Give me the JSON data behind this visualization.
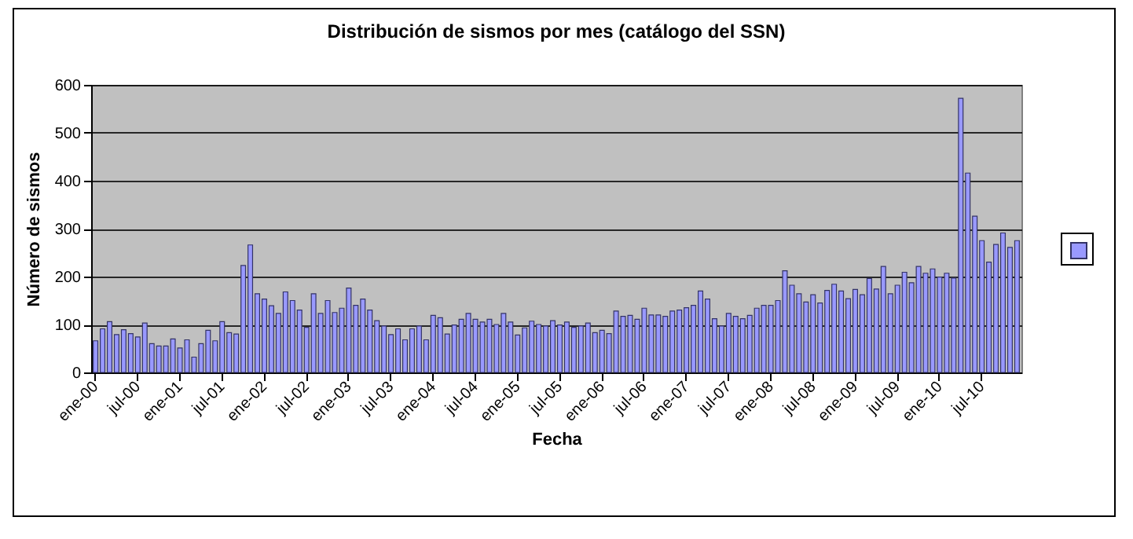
{
  "chart_data": {
    "type": "bar",
    "title": "Distribución de sismos por mes (catálogo del SSN)",
    "xlabel": "Fecha",
    "ylabel": "Número de sismos",
    "categories": [
      "ene-00",
      null,
      null,
      null,
      null,
      null,
      "jul-00",
      null,
      null,
      null,
      null,
      null,
      "ene-01",
      null,
      null,
      null,
      null,
      null,
      "jul-01",
      null,
      null,
      null,
      null,
      null,
      "ene-02",
      null,
      null,
      null,
      null,
      null,
      "jul-02",
      null,
      null,
      null,
      null,
      null,
      "ene-03",
      null,
      null,
      null,
      null,
      null,
      "jul-03",
      null,
      null,
      null,
      null,
      null,
      "ene-04",
      null,
      null,
      null,
      null,
      null,
      "jul-04",
      null,
      null,
      null,
      null,
      null,
      "ene-05",
      null,
      null,
      null,
      null,
      null,
      "jul-05",
      null,
      null,
      null,
      null,
      null,
      "ene-06",
      null,
      null,
      null,
      null,
      null,
      "jul-06",
      null,
      null,
      null,
      null,
      null,
      "ene-07",
      null,
      null,
      null,
      null,
      null,
      "jul-07",
      null,
      null,
      null,
      null,
      null,
      "ene-08",
      null,
      null,
      null,
      null,
      null,
      "jul-08",
      null,
      null,
      null,
      null,
      null,
      "ene-09",
      null,
      null,
      null,
      null,
      null,
      "jul-09",
      null,
      null,
      null,
      null,
      null,
      "ene-10",
      null,
      null,
      null,
      null,
      null,
      "jul-10",
      null,
      null,
      null,
      null,
      null
    ],
    "series": [
      {
        "color": "#9999ff",
        "values": [
          66,
          91,
          106,
          79,
          89,
          81,
          74,
          103,
          60,
          55,
          55,
          70,
          51,
          68,
          32,
          60,
          88,
          66,
          106,
          83,
          80,
          223,
          266,
          164,
          153,
          139,
          123,
          168,
          150,
          130,
          94,
          164,
          123,
          150,
          125,
          134,
          176,
          140,
          153,
          130,
          108,
          97,
          79,
          91,
          68,
          91,
          97,
          68,
          119,
          114,
          80,
          99,
          111,
          123,
          111,
          105,
          111,
          100,
          123,
          105,
          78,
          93,
          107,
          100,
          97,
          108,
          99,
          105,
          94,
          97,
          103,
          83,
          88,
          81,
          128,
          117,
          119,
          111,
          134,
          120,
          120,
          117,
          128,
          130,
          135,
          140,
          170,
          153,
          112,
          97,
          123,
          117,
          112,
          119,
          134,
          140,
          140,
          150,
          212,
          182,
          164,
          147,
          162,
          145,
          171,
          184,
          170,
          154,
          173,
          162,
          196,
          174,
          221,
          164,
          182,
          209,
          187,
          221,
          207,
          216,
          199,
          207,
          197,
          572,
          416,
          326,
          275,
          230,
          267,
          291,
          261,
          275
        ]
      }
    ],
    "ylim": [
      0,
      600
    ],
    "yticks": [
      0,
      100,
      200,
      300,
      400,
      500,
      600
    ],
    "grid": "y"
  }
}
